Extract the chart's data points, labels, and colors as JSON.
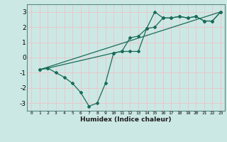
{
  "xlabel": "Humidex (Indice chaleur)",
  "ylabel": "",
  "background_color": "#cce8e4",
  "grid_color": "#e8c8cc",
  "line_color": "#1a6b5a",
  "xlim": [
    -0.5,
    23.5
  ],
  "ylim": [
    -3.5,
    3.5
  ],
  "yticks": [
    -3,
    -2,
    -1,
    0,
    1,
    2,
    3
  ],
  "xticks": [
    0,
    1,
    2,
    3,
    4,
    5,
    6,
    7,
    8,
    9,
    10,
    11,
    12,
    13,
    14,
    15,
    16,
    17,
    18,
    19,
    20,
    21,
    22,
    23
  ],
  "line1_x": [
    1,
    2,
    3,
    4,
    5,
    6,
    7,
    8,
    9,
    10,
    11,
    12,
    13,
    14,
    15,
    16,
    17,
    18,
    19,
    20,
    21,
    22,
    23
  ],
  "line1_y": [
    -0.8,
    -0.7,
    -1.0,
    -1.3,
    -1.7,
    -2.3,
    -3.2,
    -3.0,
    -1.7,
    0.3,
    0.4,
    1.3,
    1.4,
    1.9,
    3.0,
    2.6,
    2.6,
    2.7,
    2.6,
    2.7,
    2.4,
    2.4,
    3.0
  ],
  "line2_x": [
    1,
    2,
    10,
    11,
    12,
    13,
    14,
    15,
    16,
    17,
    18,
    19,
    20,
    21,
    22,
    23
  ],
  "line2_y": [
    -0.8,
    -0.7,
    0.3,
    0.4,
    0.4,
    0.4,
    1.9,
    2.0,
    2.6,
    2.6,
    2.7,
    2.6,
    2.7,
    2.4,
    2.4,
    3.0
  ],
  "line3_x": [
    1,
    23
  ],
  "line3_y": [
    -0.8,
    3.0
  ]
}
